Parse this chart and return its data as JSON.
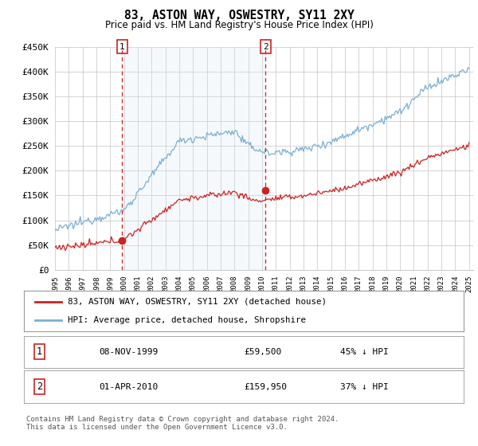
{
  "title": "83, ASTON WAY, OSWESTRY, SY11 2XY",
  "subtitle": "Price paid vs. HM Land Registry's House Price Index (HPI)",
  "ylabel_ticks": [
    "£0",
    "£50K",
    "£100K",
    "£150K",
    "£200K",
    "£250K",
    "£300K",
    "£350K",
    "£400K",
    "£450K"
  ],
  "ytick_values": [
    0,
    50000,
    100000,
    150000,
    200000,
    250000,
    300000,
    350000,
    400000,
    450000
  ],
  "hpi_color": "#7ab0d4",
  "hpi_fill_color": "#dceaf5",
  "price_color": "#cc2222",
  "t1_year": 1999.875,
  "t1_price": 59500,
  "t2_year": 2010.25,
  "t2_price": 159950,
  "legend_entry1": "83, ASTON WAY, OSWESTRY, SY11 2XY (detached house)",
  "legend_entry2": "HPI: Average price, detached house, Shropshire",
  "footer": "Contains HM Land Registry data © Crown copyright and database right 2024.\nThis data is licensed under the Open Government Licence v3.0.",
  "background_color": "#ffffff",
  "plot_bg_color": "#ffffff",
  "grid_color": "#cccccc"
}
